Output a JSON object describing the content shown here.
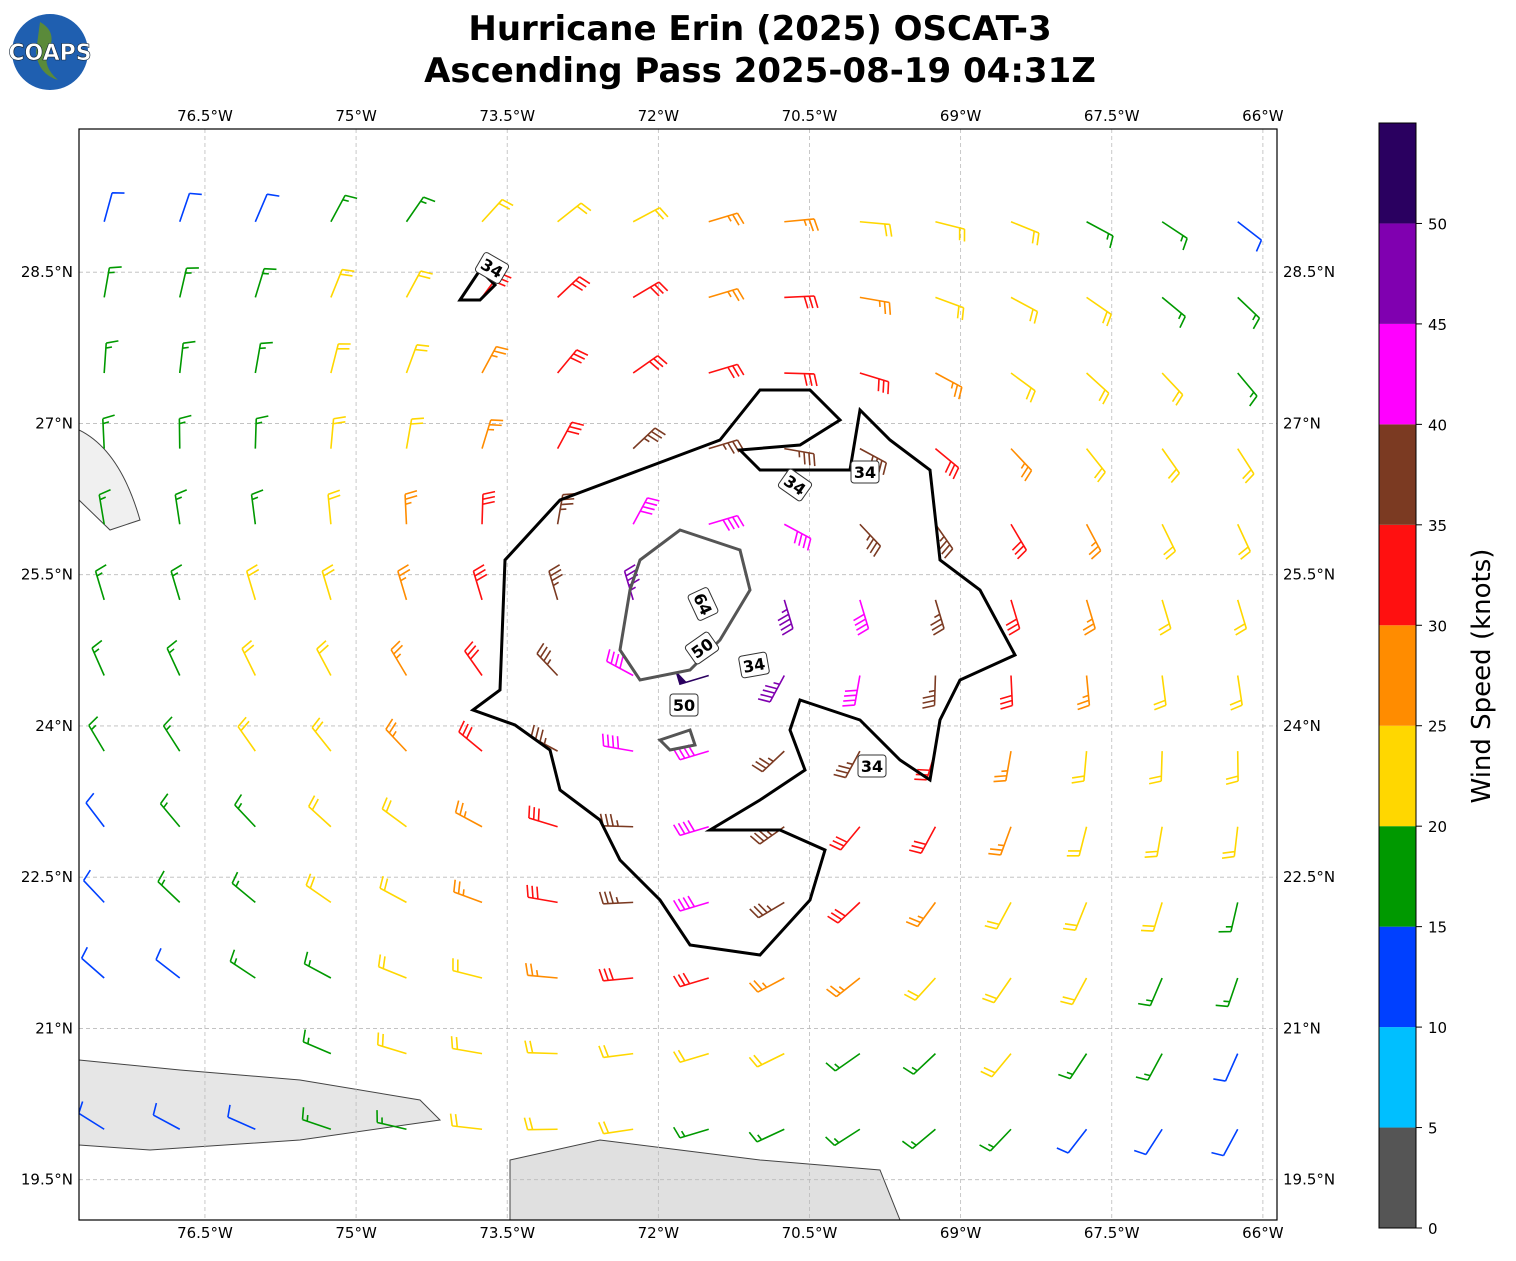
{
  "logo": "COAPS",
  "title": [
    "Hurricane Erin (2025) OSCAT-3",
    "Ascending Pass 2025-08-19 04:31Z"
  ],
  "map": {
    "xlim": [
      -77.75,
      -65.86
    ],
    "ylim": [
      19.1,
      29.92
    ],
    "xticks": [
      {
        "value": -76.5,
        "label": "76.5°W"
      },
      {
        "value": -75,
        "label": "75°W"
      },
      {
        "value": -73.5,
        "label": "73.5°W"
      },
      {
        "value": -72,
        "label": "72°W"
      },
      {
        "value": -70.5,
        "label": "70.5°W"
      },
      {
        "value": -69,
        "label": "69°W"
      },
      {
        "value": -67.5,
        "label": "67.5°W"
      },
      {
        "value": -66,
        "label": "66°W"
      }
    ],
    "yticks": [
      {
        "value": 28.5,
        "label": "28.5°N"
      },
      {
        "value": 27,
        "label": "27°N"
      },
      {
        "value": 25.5,
        "label": "25.5°N"
      },
      {
        "value": 24,
        "label": "24°N"
      },
      {
        "value": 22.5,
        "label": "22.5°N"
      },
      {
        "value": 21,
        "label": "21°N"
      },
      {
        "value": 19.5,
        "label": "19.5°N"
      }
    ],
    "grid": true,
    "contour_labels": [
      "34",
      "34",
      "34",
      "64",
      "50",
      "34",
      "50",
      "34"
    ],
    "barbs": {
      "lons": [
        -77.5,
        -76.75,
        -76,
        -75.25,
        -74.5,
        -73.75,
        -73,
        -72.25,
        -71.5,
        -70.75,
        -70,
        -69.25,
        -68.5,
        -67.75,
        -67,
        -66.25
      ],
      "lats": [
        29,
        28.25,
        27.5,
        26.75,
        26,
        25.25,
        24.5,
        23.75,
        23,
        22.25,
        21.5,
        20.75,
        20
      ],
      "speeds": [
        [
          12,
          12,
          14,
          16,
          18,
          20,
          22,
          24,
          25,
          26,
          24,
          22,
          20,
          18,
          16,
          14
        ],
        [
          15,
          16,
          18,
          20,
          24,
          30,
          32,
          30,
          28,
          30,
          28,
          24,
          22,
          20,
          18,
          16
        ],
        [
          16,
          18,
          18,
          22,
          24,
          28,
          30,
          32,
          34,
          34,
          32,
          28,
          24,
          22,
          20,
          18
        ],
        [
          16,
          17,
          18,
          22,
          24,
          28,
          32,
          35,
          36,
          38,
          36,
          32,
          28,
          24,
          22,
          20
        ],
        [
          15,
          16,
          18,
          22,
          26,
          30,
          36,
          40,
          44,
          40,
          38,
          35,
          30,
          26,
          22,
          20
        ],
        [
          16,
          17,
          20,
          22,
          26,
          32,
          38,
          46,
          56,
          48,
          40,
          36,
          32,
          26,
          22,
          20
        ],
        [
          16,
          18,
          20,
          22,
          26,
          32,
          38,
          44,
          54,
          46,
          40,
          36,
          30,
          26,
          22,
          20
        ],
        [
          15,
          17,
          20,
          22,
          26,
          30,
          36,
          42,
          44,
          38,
          36,
          33,
          28,
          24,
          22,
          20
        ],
        [
          14,
          16,
          18,
          20,
          24,
          28,
          32,
          38,
          40,
          36,
          32,
          30,
          26,
          24,
          22,
          20
        ],
        [
          12,
          16,
          18,
          20,
          22,
          26,
          30,
          36,
          42,
          36,
          30,
          28,
          24,
          22,
          20,
          18
        ],
        [
          12,
          14,
          16,
          18,
          22,
          24,
          28,
          32,
          32,
          28,
          26,
          24,
          22,
          20,
          18,
          17
        ],
        [
          null,
          null,
          null,
          16,
          20,
          22,
          24,
          24,
          22,
          20,
          18,
          18,
          20,
          18,
          15,
          14
        ],
        [
          10,
          12,
          14,
          16,
          18,
          20,
          20,
          20,
          18,
          16,
          15,
          15,
          16,
          14,
          12,
          12
        ]
      ]
    }
  },
  "colorbar": {
    "label": "Wind Speed (knots)",
    "ylim": [
      0,
      55
    ],
    "bounds": [
      0,
      5,
      10,
      15,
      20,
      25,
      30,
      35,
      40,
      45,
      50,
      55
    ],
    "colors": [
      "#555555",
      "#00bfff",
      "#0040ff",
      "#009900",
      "#ffd700",
      "#ff8c00",
      "#ff1010",
      "#7b3a22",
      "#ff00ff",
      "#8000b0",
      "#2a0060"
    ],
    "yticks": [
      0,
      5,
      10,
      15,
      20,
      25,
      30,
      35,
      40,
      45,
      50
    ]
  }
}
